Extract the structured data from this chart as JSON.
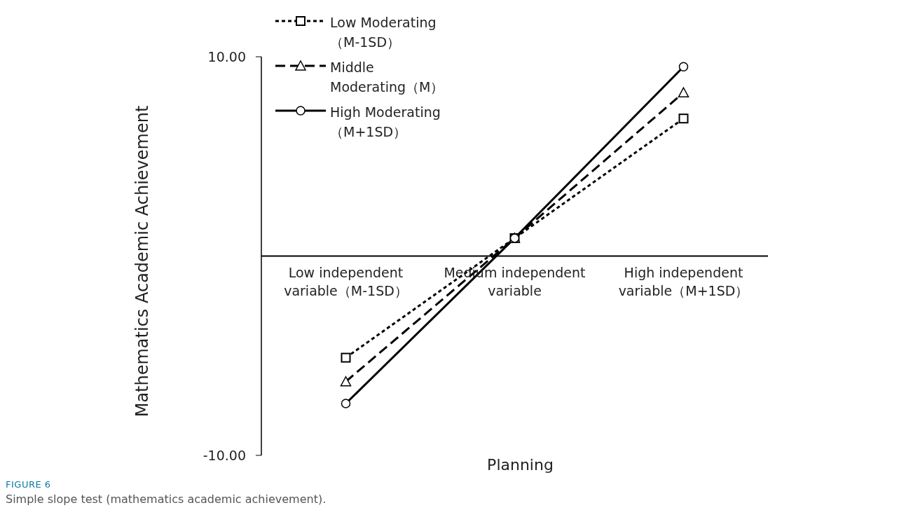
{
  "chart_data": {
    "type": "line",
    "ylabel": "Mathematics Academic Achievement",
    "xlabel": "Planning",
    "categories": [
      "Low independent variable（M-1SD）",
      "Medium independent variable",
      "High independent variable（M+1SD）"
    ],
    "series": [
      {
        "name": "Low Moderating（M-1SD）",
        "color": "#000000",
        "values": [
          -5.1,
          0.9,
          6.9
        ],
        "marker": "square",
        "line_style": "dotted"
      },
      {
        "name": "Middle Moderating（M）",
        "color": "#000000",
        "values": [
          -6.3,
          0.9,
          8.2
        ],
        "marker": "triangle",
        "line_style": "dashed"
      },
      {
        "name": "High Moderating（M+1SD）",
        "color": "#000000",
        "values": [
          -7.4,
          0.9,
          9.5
        ],
        "marker": "circle",
        "line_style": "solid"
      }
    ],
    "ylim": [
      -10,
      10
    ],
    "yticks": [
      {
        "value": -10,
        "label": "-10.00"
      },
      {
        "value": 10,
        "label": "10.00"
      }
    ],
    "grid": false,
    "legend": "top left",
    "annotations": [
      "FIGURE 6",
      "Simple slope test (mathematics academic achievement)."
    ]
  }
}
